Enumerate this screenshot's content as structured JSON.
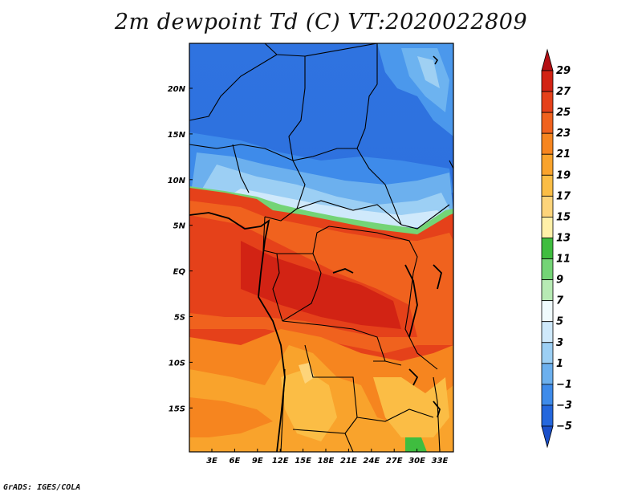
{
  "title": "2m dewpoint Td (C) VT:2020022809",
  "credit": "GrADS: IGES/COLA",
  "map": {
    "lat_labels": [
      "20N",
      "15N",
      "10N",
      "5N",
      "EQ",
      "5S",
      "10S",
      "15S"
    ],
    "lon_labels": [
      "3E",
      "6E",
      "9E",
      "12E",
      "15E",
      "18E",
      "21E",
      "24E",
      "27E",
      "30E",
      "33E"
    ]
  },
  "colorbar": {
    "labels": [
      "29",
      "27",
      "25",
      "23",
      "21",
      "19",
      "17",
      "15",
      "13",
      "11",
      "9",
      "7",
      "5",
      "3",
      "1",
      "−1",
      "−3",
      "−5"
    ],
    "colors": [
      "#b40f14",
      "#d22314",
      "#e5411a",
      "#f0621e",
      "#f6851f",
      "#f9a32c",
      "#fbbd45",
      "#fdd47a",
      "#fff0a8",
      "#3fbd3f",
      "#74d476",
      "#b7eab4",
      "#f0fbfd",
      "#cfe9fb",
      "#9ccff4",
      "#6cb0ee",
      "#3e8bea",
      "#2467dd",
      "#1a4fc9"
    ]
  }
}
